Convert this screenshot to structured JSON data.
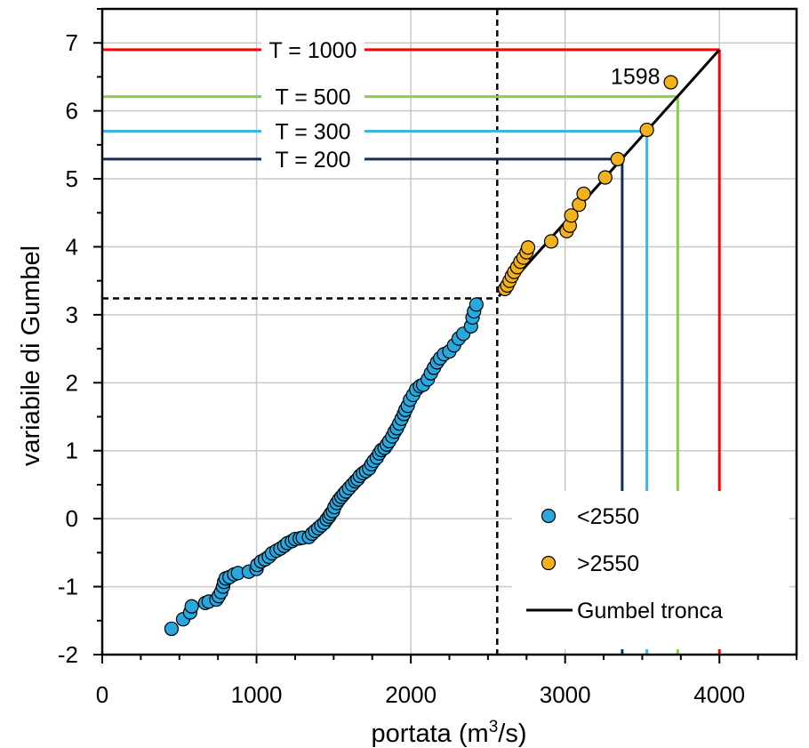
{
  "chart_data": {
    "type": "scatter",
    "xlabel": "portata (m³/s)",
    "ylabel": "variabile di Gumbel",
    "xlim": [
      0,
      4500
    ],
    "ylim": [
      -2,
      7.5
    ],
    "x_ticks": [
      0,
      1000,
      2000,
      3000,
      4000
    ],
    "y_ticks": [
      -2,
      -1,
      0,
      1,
      2,
      3,
      4,
      5,
      6,
      7
    ],
    "grid": true,
    "legend_position": "bottom-right",
    "colors": {
      "below": "#29a8e0",
      "above": "#f2b21b",
      "fit": "#000000",
      "T1000": "#ff0000",
      "T500": "#8ccd4b",
      "T300": "#3cb4e6",
      "T200": "#0f2d5f"
    },
    "series": [
      {
        "name": "<2550",
        "points": [
          [
            449,
            -1.62
          ],
          [
            524,
            -1.48
          ],
          [
            570,
            -1.38
          ],
          [
            580,
            -1.29
          ],
          [
            668,
            -1.24
          ],
          [
            690,
            -1.22
          ],
          [
            740,
            -1.19
          ],
          [
            755,
            -1.14
          ],
          [
            770,
            -1.08
          ],
          [
            783,
            -1.0
          ],
          [
            790,
            -0.93
          ],
          [
            800,
            -0.88
          ],
          [
            825,
            -0.86
          ],
          [
            855,
            -0.82
          ],
          [
            880,
            -0.8
          ],
          [
            950,
            -0.78
          ],
          [
            1000,
            -0.74
          ],
          [
            1005,
            -0.68
          ],
          [
            1030,
            -0.63
          ],
          [
            1055,
            -0.6
          ],
          [
            1080,
            -0.56
          ],
          [
            1100,
            -0.51
          ],
          [
            1130,
            -0.47
          ],
          [
            1155,
            -0.44
          ],
          [
            1180,
            -0.4
          ],
          [
            1200,
            -0.36
          ],
          [
            1230,
            -0.33
          ],
          [
            1250,
            -0.3
          ],
          [
            1280,
            -0.29
          ],
          [
            1300,
            -0.28
          ],
          [
            1340,
            -0.27
          ],
          [
            1360,
            -0.22
          ],
          [
            1380,
            -0.18
          ],
          [
            1400,
            -0.14
          ],
          [
            1420,
            -0.1
          ],
          [
            1440,
            -0.06
          ],
          [
            1455,
            -0.01
          ],
          [
            1470,
            0.03
          ],
          [
            1480,
            0.07
          ],
          [
            1495,
            0.11
          ],
          [
            1505,
            0.17
          ],
          [
            1520,
            0.23
          ],
          [
            1535,
            0.28
          ],
          [
            1550,
            0.32
          ],
          [
            1565,
            0.36
          ],
          [
            1580,
            0.4
          ],
          [
            1600,
            0.45
          ],
          [
            1620,
            0.5
          ],
          [
            1640,
            0.55
          ],
          [
            1655,
            0.58
          ],
          [
            1670,
            0.63
          ],
          [
            1690,
            0.67
          ],
          [
            1710,
            0.7
          ],
          [
            1730,
            0.74
          ],
          [
            1745,
            0.8
          ],
          [
            1760,
            0.85
          ],
          [
            1780,
            0.9
          ],
          [
            1795,
            0.96
          ],
          [
            1810,
            1.01
          ],
          [
            1830,
            1.04
          ],
          [
            1845,
            1.09
          ],
          [
            1860,
            1.14
          ],
          [
            1880,
            1.21
          ],
          [
            1895,
            1.28
          ],
          [
            1910,
            1.33
          ],
          [
            1925,
            1.4
          ],
          [
            1940,
            1.47
          ],
          [
            1955,
            1.54
          ],
          [
            1965,
            1.6
          ],
          [
            1980,
            1.66
          ],
          [
            1995,
            1.75
          ],
          [
            2015,
            1.82
          ],
          [
            2035,
            1.9
          ],
          [
            2060,
            1.95
          ],
          [
            2080,
            1.97
          ],
          [
            2110,
            2.05
          ],
          [
            2130,
            2.14
          ],
          [
            2150,
            2.22
          ],
          [
            2170,
            2.3
          ],
          [
            2190,
            2.36
          ],
          [
            2215,
            2.42
          ],
          [
            2250,
            2.46
          ],
          [
            2280,
            2.55
          ],
          [
            2310,
            2.65
          ],
          [
            2340,
            2.72
          ],
          [
            2390,
            2.83
          ],
          [
            2400,
            2.96
          ],
          [
            2410,
            3.05
          ],
          [
            2425,
            3.15
          ]
        ]
      },
      {
        "name": ">2550",
        "points": [
          [
            2610,
            3.38
          ],
          [
            2625,
            3.43
          ],
          [
            2640,
            3.5
          ],
          [
            2655,
            3.57
          ],
          [
            2670,
            3.63
          ],
          [
            2690,
            3.7
          ],
          [
            2710,
            3.78
          ],
          [
            2730,
            3.84
          ],
          [
            2750,
            3.92
          ],
          [
            2760,
            3.99
          ],
          [
            2910,
            4.08
          ],
          [
            3010,
            4.23
          ],
          [
            3030,
            4.31
          ],
          [
            3040,
            4.46
          ],
          [
            3090,
            4.62
          ],
          [
            3120,
            4.78
          ],
          [
            3260,
            5.02
          ],
          [
            3340,
            5.29
          ],
          [
            3530,
            5.72
          ],
          [
            3685,
            6.42
          ]
        ]
      },
      {
        "name": "Gumbel tronca",
        "line": [
          [
            2570,
            3.27
          ],
          [
            4000,
            6.9
          ]
        ]
      }
    ],
    "threshold": {
      "x": 2560,
      "y": 3.24
    },
    "return_levels": [
      {
        "label": "T = 1000",
        "y": 6.9,
        "x": 4000,
        "color_key": "T1000"
      },
      {
        "label": "T = 500",
        "y": 6.21,
        "x": 3730,
        "color_key": "T500"
      },
      {
        "label": "T = 300",
        "y": 5.7,
        "x": 3530,
        "color_key": "T300"
      },
      {
        "label": "T = 200",
        "y": 5.29,
        "x": 3370,
        "color_key": "T200"
      }
    ],
    "annotations": [
      {
        "text": "1598",
        "x": 3685,
        "y": 6.42
      }
    ],
    "legend": [
      {
        "label": "<2550",
        "marker": "circle",
        "color_key": "below"
      },
      {
        "label": ">2550",
        "marker": "circle",
        "color_key": "above"
      },
      {
        "label": "Gumbel tronca",
        "marker": "line",
        "color_key": "fit"
      }
    ]
  }
}
